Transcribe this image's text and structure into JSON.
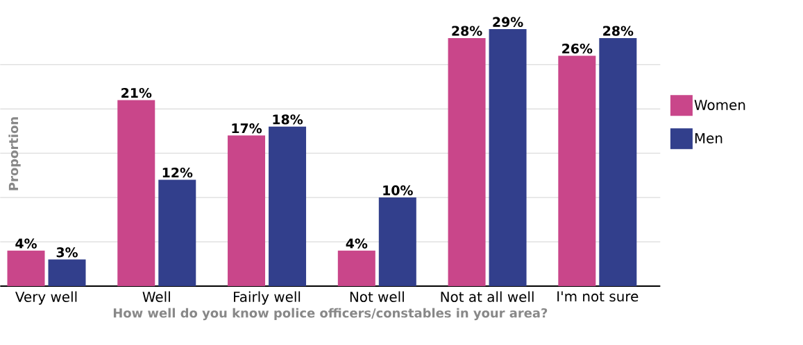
{
  "chart_data": {
    "type": "bar",
    "xlabel": "How well do you know police officers/constables in your area?",
    "ylabel": "Proportion",
    "categories": [
      "Very well",
      "Well",
      "Fairly well",
      "Not well",
      "Not at all well",
      "I'm not sure"
    ],
    "series": [
      {
        "name": "Women",
        "color": "#c9468a",
        "values": [
          4,
          21,
          17,
          4,
          28,
          26
        ],
        "value_labels": [
          "4%",
          "21%",
          "17%",
          "4%",
          "28%",
          "26%"
        ]
      },
      {
        "name": "Men",
        "color": "#323f8c",
        "values": [
          3,
          12,
          18,
          10,
          29,
          28
        ],
        "value_labels": [
          "3%",
          "12%",
          "18%",
          "10%",
          "29%",
          "28%"
        ]
      }
    ],
    "grid": "y",
    "legend": "right",
    "tick_labels": "x"
  }
}
